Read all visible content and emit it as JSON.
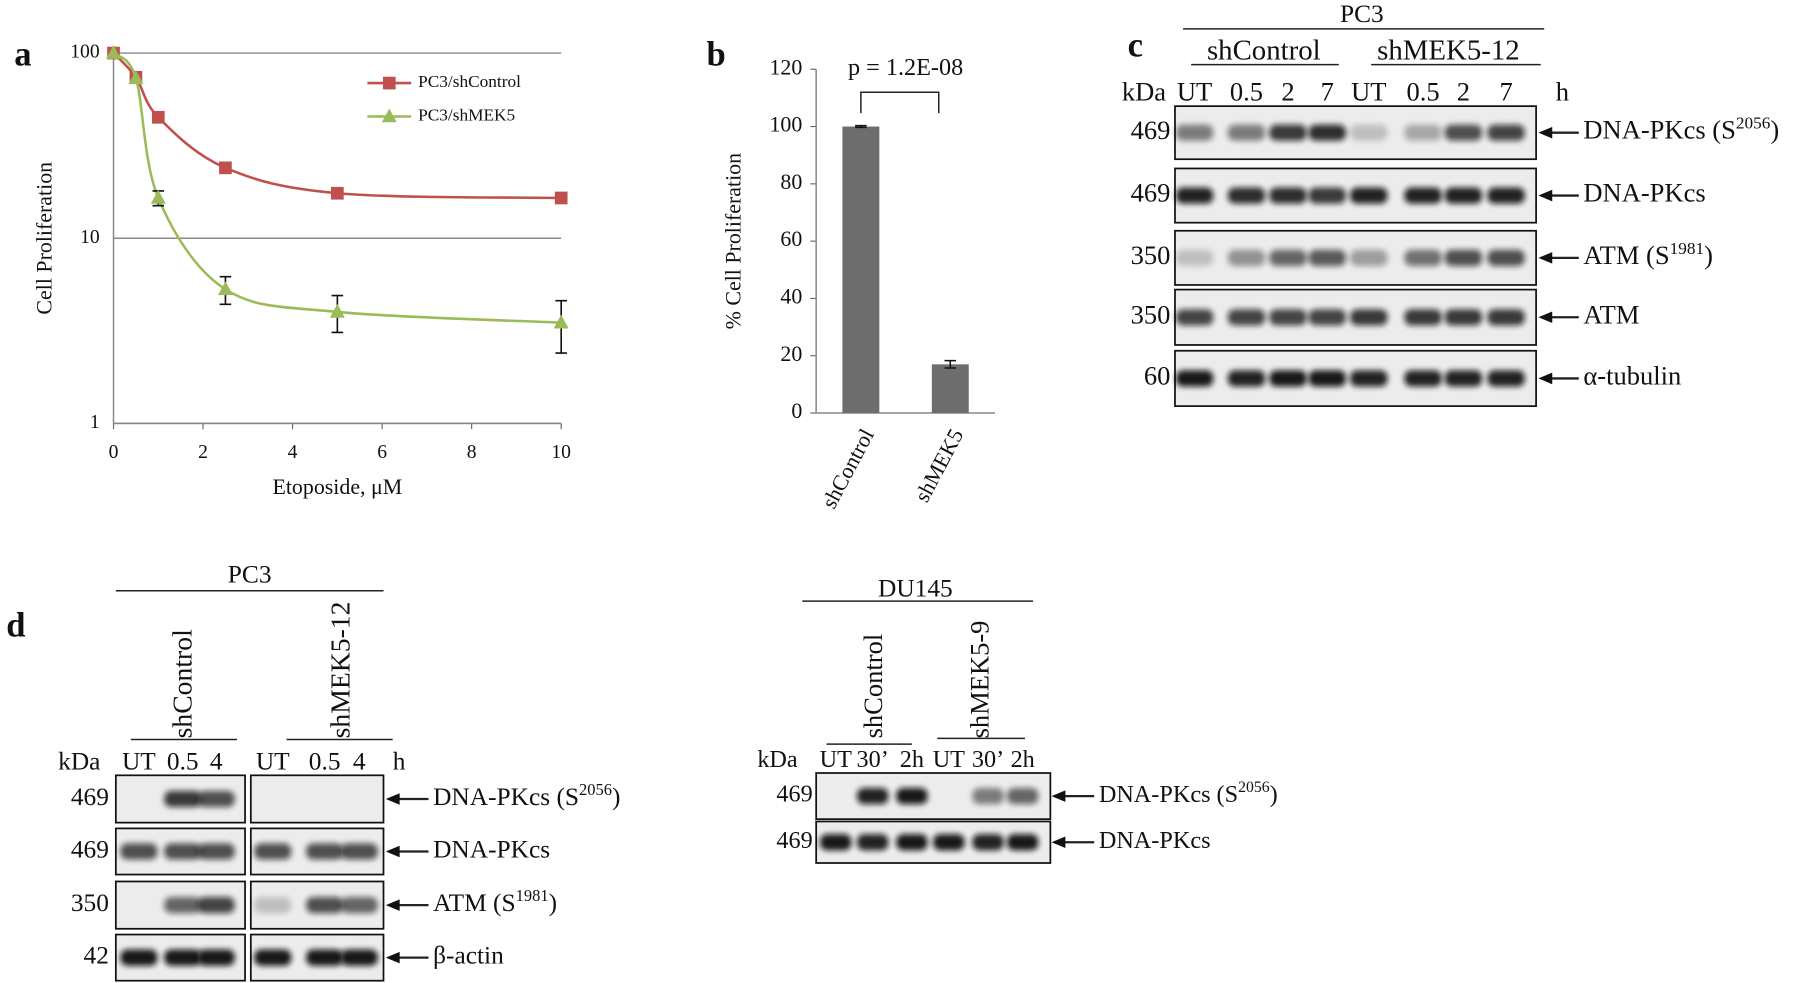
{
  "chart_data": [
    {
      "panel": "a",
      "type": "line",
      "y_label": "Cell Proliferation",
      "x_label": "Etoposide, μM",
      "x": [
        0,
        0.5,
        1,
        2.5,
        5,
        10
      ],
      "series": [
        {
          "name": "PC3/shControl",
          "color": "#c0504d",
          "marker": "square",
          "values": [
            100,
            74,
            45,
            24,
            17.5,
            16.5
          ]
        },
        {
          "name": "PC3/shMEK5",
          "color": "#9bbb59",
          "marker": "triangle",
          "values": [
            100,
            73,
            16.5,
            5.3,
            4,
            3.5
          ],
          "errors": [
            null,
            null,
            1.5,
            0.9,
            0.9,
            1.1
          ]
        }
      ],
      "xlim": [
        0,
        10
      ],
      "xticks": [
        0,
        2,
        4,
        6,
        8,
        10
      ],
      "ylim": [
        1,
        100
      ],
      "yticks": [
        1,
        10,
        100
      ],
      "log_y": true,
      "grid": true,
      "legend": "upper right"
    },
    {
      "panel": "b",
      "type": "bar",
      "y_label": "% Cell Proliferation",
      "annotation": "p = 1.2E-08",
      "categories": [
        "shControl",
        "shMEK5"
      ],
      "values": [
        100,
        17
      ],
      "errors": [
        0.3,
        1.3
      ],
      "color": "#6d6d6d",
      "ylim": [
        0,
        120
      ],
      "yticks": [
        0,
        20,
        40,
        60,
        80,
        100,
        120
      ]
    }
  ],
  "blots": [
    {
      "panel": "c",
      "title": "PC3",
      "groups": [
        "shControl",
        "shMEK5-12"
      ],
      "kda_label": "kDa",
      "lanes": [
        "UT",
        "0.5",
        "2",
        "7",
        "UT",
        "0.5",
        "2",
        "7"
      ],
      "unit": "h",
      "rows": [
        {
          "kda": "469",
          "label": "DNA-PKcs (S",
          "sup": "2056",
          "suffix": ")"
        },
        {
          "kda": "469",
          "label": "DNA-PKcs"
        },
        {
          "kda": "350",
          "label": "ATM (S",
          "sup": "1981",
          "suffix": ")"
        },
        {
          "kda": "350",
          "label": "ATM"
        },
        {
          "kda": "60",
          "label": "α-tubulin"
        }
      ]
    },
    {
      "panel": "d",
      "title": "PC3",
      "groups": [
        "shControl",
        "shMEK5-12"
      ],
      "kda_label": "kDa",
      "lanes": [
        "UT",
        "0.5",
        "4",
        "UT",
        "0.5",
        "4"
      ],
      "unit": "h",
      "rows": [
        {
          "kda": "469",
          "label": "DNA-PKcs (S",
          "sup": "2056",
          "suffix": ")"
        },
        {
          "kda": "469",
          "label": "DNA-PKcs"
        },
        {
          "kda": "350",
          "label": "ATM (S",
          "sup": "1981",
          "suffix": ")"
        },
        {
          "kda": "42",
          "label": "β-actin"
        }
      ]
    },
    {
      "title": "DU145",
      "groups": [
        "shControl",
        "shMEK5-9"
      ],
      "kda_label": "kDa",
      "lanes": [
        "UT",
        "30’",
        "2h",
        "UT",
        "30’",
        "2h"
      ],
      "rows": [
        {
          "kda": "469",
          "label": "DNA-PKcs (S",
          "sup": "2056",
          "suffix": ")"
        },
        {
          "kda": "469",
          "label": "DNA-PKcs"
        }
      ]
    }
  ]
}
